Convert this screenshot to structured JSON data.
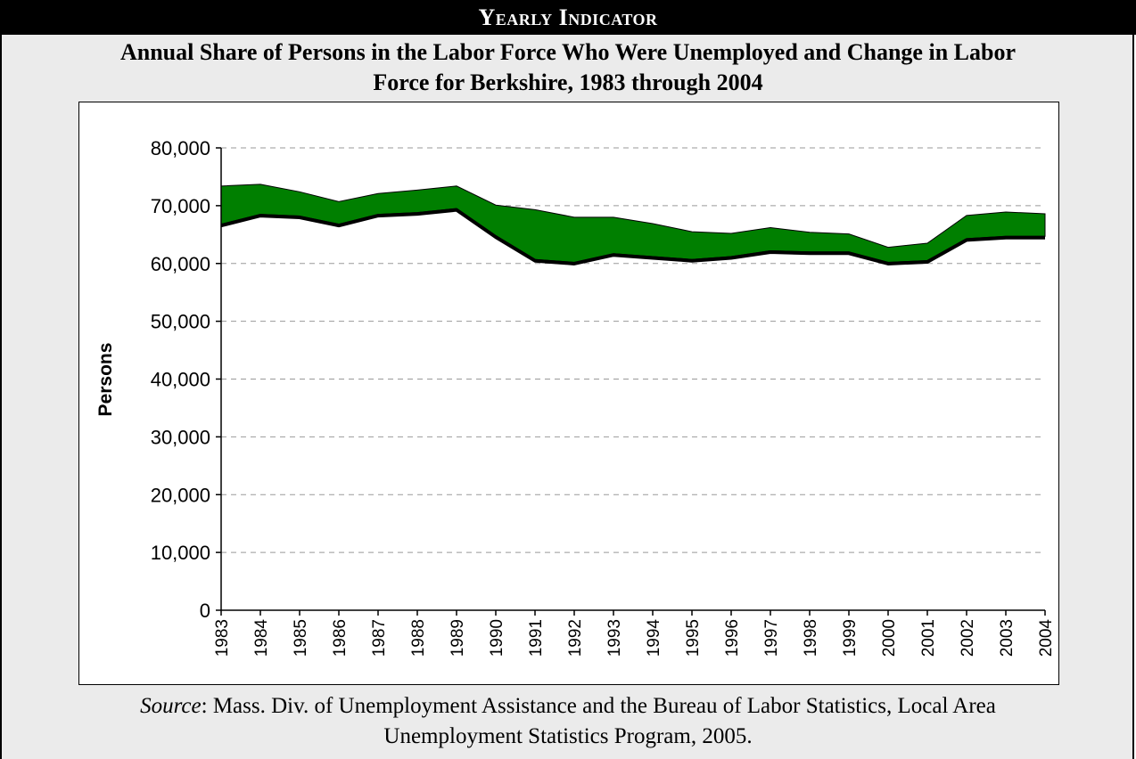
{
  "banner": {
    "text": "Yearly Indicator"
  },
  "title": {
    "line1": "Annual Share of Persons in the Labor Force Who Were Unemployed and Change in Labor",
    "line2": "Force for Berkshire, 1983 through 2004"
  },
  "source": {
    "label": "Source",
    "text": ":  Mass. Div. of Unemployment Assistance and the Bureau of Labor Statistics, Local Area",
    "line2": "Unemployment Statistics Program, 2005."
  },
  "colors": {
    "band": "#007f00",
    "employed_line": "#000000",
    "grid": "#999999"
  },
  "chart_data": {
    "type": "area",
    "title": "Annual Share of Persons in the Labor Force Who Were Unemployed and Change in Labor Force for Berkshire, 1983 through 2004",
    "xlabel": "",
    "ylabel": "Persons",
    "ylim": [
      0,
      80000
    ],
    "yticks": [
      0,
      10000,
      20000,
      30000,
      40000,
      50000,
      60000,
      70000,
      80000
    ],
    "ytick_labels": [
      "0",
      "10,000",
      "20,000",
      "30,000",
      "40,000",
      "50,000",
      "60,000",
      "70,000",
      "80,000"
    ],
    "grid": "horizontal dashed",
    "categories": [
      "1983",
      "1984",
      "1985",
      "1986",
      "1987",
      "1988",
      "1989",
      "1990",
      "1991",
      "1992",
      "1993",
      "1994",
      "1995",
      "1996",
      "1997",
      "1998",
      "1999",
      "2000",
      "2001",
      "2002",
      "2003",
      "2004"
    ],
    "series": [
      {
        "values": [
          66800,
          68500,
          68200,
          66800,
          68500,
          68800,
          69500,
          64800,
          60700,
          60200,
          61700,
          61200,
          60700,
          61200,
          62200,
          62000,
          62000,
          60200,
          60500,
          64300,
          64700,
          64700
        ]
      },
      {
        "values": [
          73400,
          73700,
          72400,
          70700,
          72100,
          72700,
          73400,
          70100,
          69300,
          68000,
          68000,
          66900,
          65500,
          65200,
          66200,
          65400,
          65100,
          62800,
          63500,
          68300,
          68900,
          68600
        ]
      }
    ]
  }
}
